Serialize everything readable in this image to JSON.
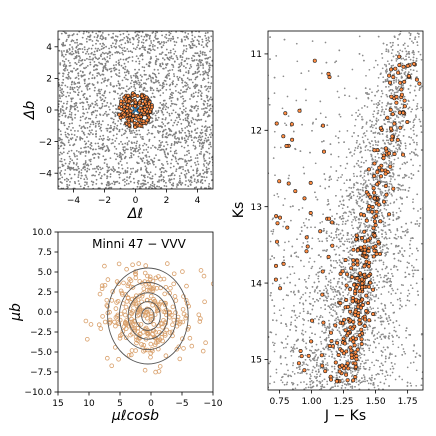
{
  "chart_data": [
    {
      "type": "scatter",
      "panel": "spatial",
      "xlabel": "Δℓ",
      "ylabel": "Δb",
      "xlim": [
        -5,
        5
      ],
      "ylim": [
        -5,
        5
      ],
      "xticks": [
        "−4",
        "−2",
        "0",
        "2",
        "4"
      ],
      "yticks": [
        "4",
        "2",
        "0",
        "−2",
        "−4"
      ],
      "xtick_values": [
        -4,
        -2,
        0,
        2,
        4
      ],
      "ytick_values": [
        4,
        2,
        0,
        -2,
        -4
      ],
      "grid": false,
      "series": [
        {
          "role": "field stars",
          "color": "#7f7f7f",
          "shape": "filled points",
          "coverage": "whole panel except central disc",
          "exclusion_radius": 1.1
        },
        {
          "role": "cluster stars",
          "color": "#ff8c42",
          "edgecolor": "#1a1a1a",
          "center": [
            0,
            0
          ],
          "radius": 1.1
        },
        {
          "role": "cluster centre",
          "marker": "x",
          "color": "#1f77b4",
          "x": 0,
          "y": 0
        }
      ]
    },
    {
      "type": "scatter",
      "panel": "proper motion",
      "title": "Minni 47  −  VVV",
      "xlabel": "μℓcosb",
      "ylabel": "μb",
      "xlim": [
        15,
        -10
      ],
      "ylim": [
        -10,
        10
      ],
      "xticks": [
        "15",
        "10",
        "5",
        "0",
        "−5",
        "−10"
      ],
      "xtick_values": [
        15,
        10,
        5,
        0,
        -5,
        -10
      ],
      "yticks": [
        "10.0",
        "7.5",
        "5.0",
        "2.5",
        "0.0",
        "−2.5",
        "−5.0",
        "−7.5",
        "−10.0"
      ],
      "ytick_values": [
        10,
        7.5,
        5,
        2.5,
        0,
        -2.5,
        -5,
        -7.5,
        -10
      ],
      "grid": false,
      "series": [
        {
          "role": "stars",
          "color": "#d9a06b",
          "marker": "open circle",
          "center": [
            0.5,
            -0.3
          ],
          "spread_x": 3.5,
          "spread_y": 3.0
        },
        {
          "role": "density contours",
          "color": "#555555",
          "center": [
            0.5,
            -0.5
          ],
          "radii_x": [
            1.0,
            2.0,
            3.2,
            4.6,
            6.5
          ],
          "radii_y": [
            1.0,
            1.8,
            2.9,
            4.2,
            6.0
          ]
        }
      ]
    },
    {
      "type": "scatter",
      "panel": "colour-magnitude diagram",
      "xlabel": "J − Ks",
      "ylabel": "Ks",
      "xlim": [
        0.66,
        1.87
      ],
      "ylim": [
        15.4,
        10.7
      ],
      "y_inverted": true,
      "xticks": [
        "0.75",
        "1.00",
        "1.25",
        "1.50",
        "1.75"
      ],
      "xtick_values": [
        0.75,
        1.0,
        1.25,
        1.5,
        1.75
      ],
      "yticks": [
        "11",
        "12",
        "13",
        "14",
        "15"
      ],
      "ytick_values": [
        11,
        12,
        13,
        14,
        15
      ],
      "grid": false,
      "series": [
        {
          "role": "field stars",
          "color": "#8c8c8c",
          "ridge": [
            [
              1.73,
              10.8
            ],
            [
              1.62,
              12.0
            ],
            [
              1.48,
              13.0
            ],
            [
              1.38,
              14.0
            ],
            [
              1.25,
              15.3
            ]
          ],
          "width": 0.1
        },
        {
          "role": "cluster members",
          "color": "#ff8c42",
          "edgecolor": "#1a1a1a",
          "ridge": [
            [
              1.73,
              10.8
            ],
            [
              1.62,
              12.0
            ],
            [
              1.48,
              13.0
            ],
            [
              1.38,
              14.0
            ],
            [
              1.25,
              15.3
            ]
          ]
        }
      ]
    }
  ]
}
